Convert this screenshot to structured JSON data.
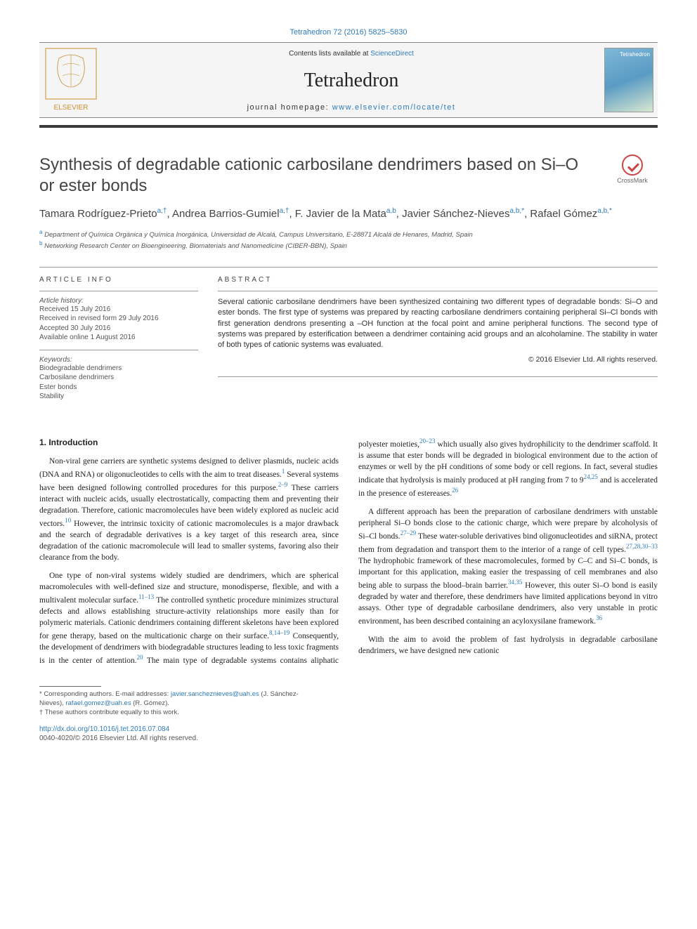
{
  "header": {
    "journal_ref": "Tetrahedron 72 (2016) 5825–5830",
    "contents_prefix": "Contents lists available at ",
    "contents_link": "ScienceDirect",
    "journal_name": "Tetrahedron",
    "homepage_prefix": "journal homepage: ",
    "homepage_link": "www.elsevier.com/locate/tet",
    "cover_label": "Tetrahedron",
    "publisher": "ELSEVIER"
  },
  "crossmark": {
    "label": "CrossMark"
  },
  "article": {
    "title": "Synthesis of degradable cationic carbosilane dendrimers based on Si–O or ester bonds",
    "authors_html": "Tamara Rodríguez-Prieto|a,†|, Andrea Barrios-Gumiel|a,†|, F. Javier de la Mata|a,b|, Javier Sánchez-Nieves|a,b,*|, Rafael Gómez|a,b,*|",
    "affiliations": [
      {
        "tag": "a",
        "text": "Department of Química Orgánica y Química Inorgánica, Universidad de Alcalá, Campus Universitario, E-28871 Alcalá de Henares, Madrid, Spain"
      },
      {
        "tag": "b",
        "text": "Networking Research Center on Bioengineering, Biomaterials and Nanomedicine (CIBER-BBN), Spain"
      }
    ]
  },
  "info": {
    "heading": "ARTICLE INFO",
    "history_label": "Article history:",
    "history": [
      "Received 15 July 2016",
      "Received in revised form 29 July 2016",
      "Accepted 30 July 2016",
      "Available online 1 August 2016"
    ],
    "keywords_label": "Keywords:",
    "keywords": [
      "Biodegradable dendrimers",
      "Carbosilane dendrimers",
      "Ester bonds",
      "Stability"
    ]
  },
  "abstract": {
    "heading": "ABSTRACT",
    "text": "Several cationic carbosilane dendrimers have been synthesized containing two different types of degradable bonds: Si–O and ester bonds. The first type of systems was prepared by reacting carbosilane dendrimers containing peripheral Si–Cl bonds with first generation dendrons presenting a –OH function at the focal point and amine peripheral functions. The second type of systems was prepared by esterification between a dendrimer containing acid groups and an alcoholamine. The stability in water of both types of cationic systems was evaluated.",
    "copyright": "© 2016 Elsevier Ltd. All rights reserved."
  },
  "body": {
    "section1_heading": "1. Introduction",
    "p1a": "Non-viral gene carriers are synthetic systems designed to deliver plasmids, nucleic acids (DNA and RNA) or oligonucleotides to cells with the aim to treat diseases.",
    "p1b": " Several systems have been designed following controlled procedures for this purpose.",
    "p1c": " These carriers interact with nucleic acids, usually electrostatically, compacting them and preventing their degradation. Therefore, cationic macromolecules have been widely explored as nucleic acid vectors.",
    "p1d": " However, the intrinsic toxicity of cationic macromolecules is a major drawback and the search of degradable derivatives is a key target of this research area, since degradation of the cationic macromolecule will lead to smaller systems, favoring also their clearance from the body.",
    "p2a": "One type of non-viral systems widely studied are dendrimers, which are spherical macromolecules with well-defined size and structure, monodisperse, flexible, and with a multivalent molecular surface.",
    "p2b": " The controlled synthetic procedure minimizes structural defects and allows establishing structure-activity relationships more easily than for polymeric materials. Cationic dendrimers containing different skeletons have been explored for gene therapy, based on the multicationic charge on their surface.",
    "p2c": " Consequently, the development of dendrimers with biodegradable structures leading to less toxic fragments is in the center of attention.",
    "p2d": " The main type of degradable systems contains aliphatic polyester moieties,",
    "p2e": " which usually also gives hydrophilicity to the dendrimer scaffold. It is assume that ester bonds will be degraded in biological environment due to the action of enzymes or well by the pH conditions of some body or cell regions. In fact, several studies indicate that hydrolysis is mainly produced at pH ranging from 7 to 9",
    "p2f": " and is accelerated in the presence of estereases.",
    "p3a": "A different approach has been the preparation of carbosilane dendrimers with unstable peripheral Si–O bonds close to the cationic charge, which were prepare by alcoholysis of Si–Cl bonds.",
    "p3b": " These water-soluble derivatives bind oligonucleotides and siRNA, protect them from degradation and transport them to the interior of a range of cell types.",
    "p3c": " The hydrophobic framework of these macromolecules, formed by C–C and Si–C bonds, is important for this application, making easier the trespassing of cell membranes and also being able to surpass the blood–brain barrier.",
    "p3d": " However, this outer Si–O bond is easily degraded by water and therefore, these dendrimers have limited applications beyond in vitro assays. Other type of degradable carbosilane dendrimers, also very unstable in protic environment, has been described containing an acyloxysilane framework.",
    "p4": "With the aim to avoid the problem of fast hydrolysis in degradable carbosilane dendrimers, we have designed new cationic",
    "ref1": "1",
    "ref2_9": "2–9",
    "ref10": "10",
    "ref11_13": "11–13",
    "ref8_14_19": "8,14–19",
    "ref20": "20",
    "ref20_23": "20–23",
    "ref24_25": "24,25",
    "ref26": "26",
    "ref27_29": "27–29",
    "ref27_28_30_33": "27,28,30–33",
    "ref34_35": "34,35",
    "ref36": "36"
  },
  "footer": {
    "corr_prefix": "* Corresponding authors. E-mail addresses: ",
    "email1": "javier.sancheznieves@uah.es",
    "name1": " (J. Sánchez-Nieves), ",
    "email2": "rafael.gomez@uah.es",
    "name2": " (R. Gómez).",
    "dagger": "† These authors contribute equally to this work.",
    "doi": "http://dx.doi.org/10.1016/j.tet.2016.07.084",
    "rights": "0040-4020/© 2016 Elsevier Ltd. All rights reserved."
  },
  "colors": {
    "link": "#2e7bb8",
    "text": "#333333",
    "rule": "#999999",
    "darkbar": "#3a3a3a"
  }
}
